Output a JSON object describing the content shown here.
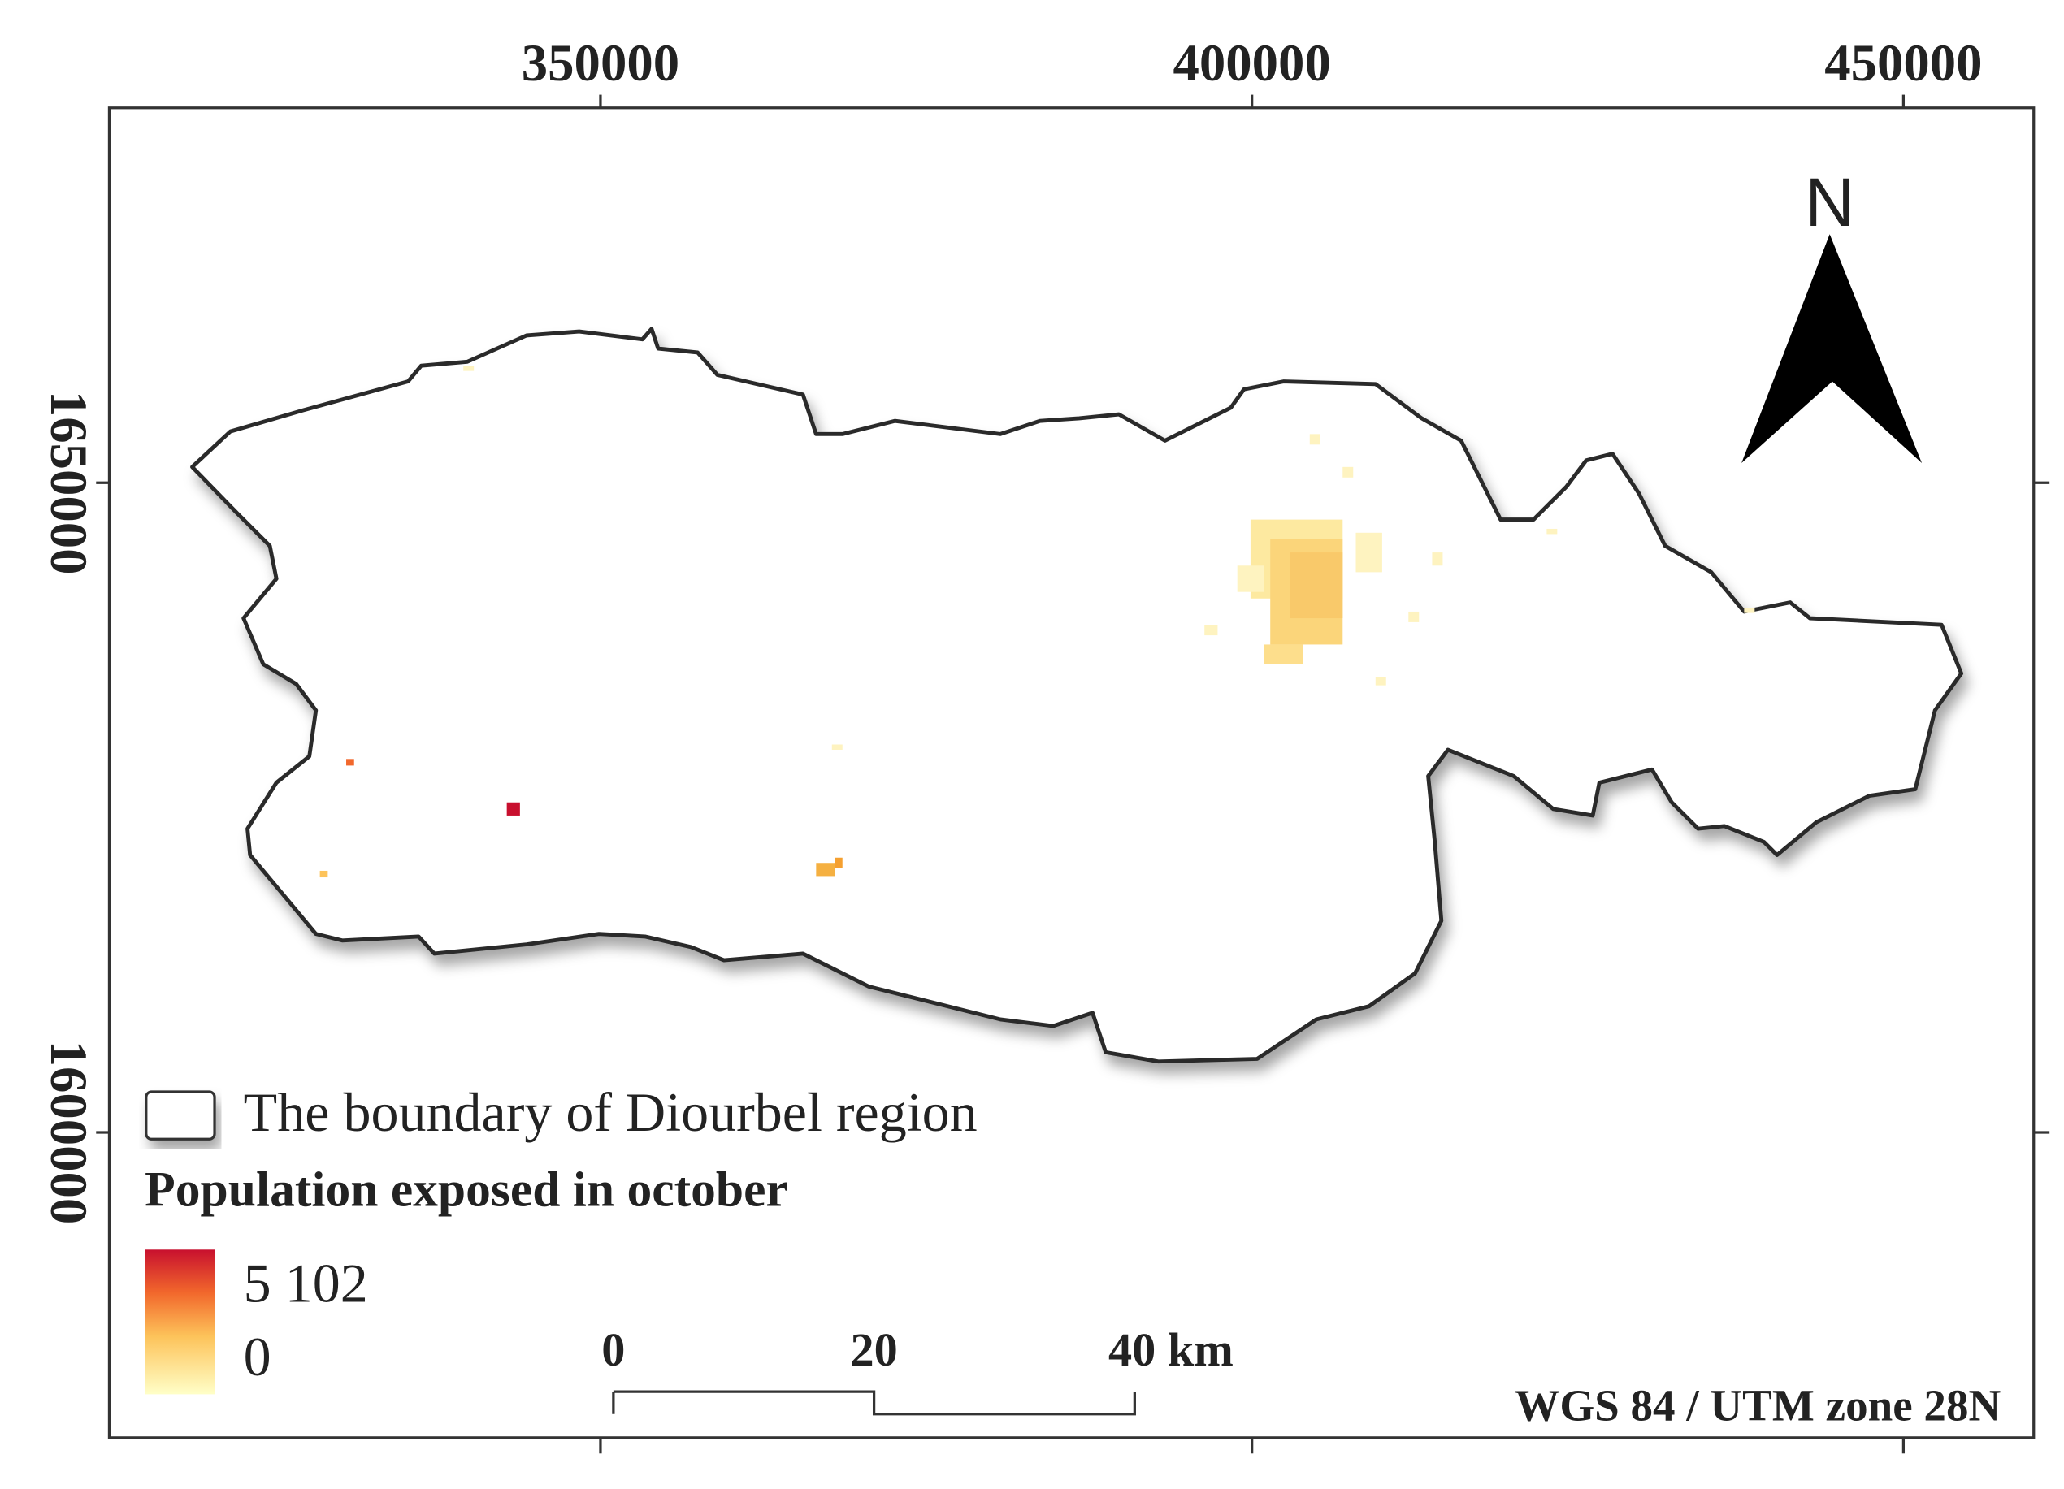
{
  "map": {
    "xlim": [
      312300,
      460000
    ],
    "ylim": [
      1576500,
      1678850
    ],
    "xticks": [
      350000,
      400000,
      450000
    ],
    "yticks": [
      1600000,
      1650000
    ],
    "north": "N",
    "legend": {
      "boundary": "The boundary of Diourbel region",
      "title": "Population exposed in october",
      "max": "5 102",
      "min": "0"
    },
    "scalebar": [
      "0",
      "20",
      "40 km"
    ],
    "crs": "WGS 84 / UTM zone 28N"
  }
}
